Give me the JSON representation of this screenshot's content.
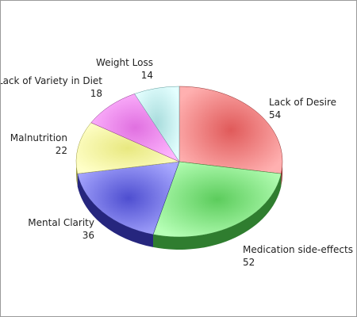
{
  "chart_data": {
    "type": "pie",
    "title": "",
    "three_d": true,
    "legend": "none",
    "slices": [
      {
        "label": "Lack of Desire",
        "value": 54,
        "color": "#e05a5a",
        "light": "#ffb0b0",
        "dark": "#8e2a2a"
      },
      {
        "label": "Medication side-effects",
        "value": 52,
        "color": "#5ccc5c",
        "light": "#b6ffb6",
        "dark": "#2f7d2f"
      },
      {
        "label": "Mental Clarity",
        "value": 36,
        "color": "#4e4ed0",
        "light": "#a8a8ff",
        "dark": "#26267e"
      },
      {
        "label": "Malnutrition",
        "value": 22,
        "color": "#e8e880",
        "light": "#ffffc8",
        "dark": "#9a9a40"
      },
      {
        "label": "Lack of Variety in Diet",
        "value": 18,
        "color": "#e070e0",
        "light": "#ffb8ff",
        "dark": "#8a348a"
      },
      {
        "label": "Weight Loss",
        "value": 14,
        "color": "#a8dcdc",
        "light": "#e4ffff",
        "dark": "#5e9a9a"
      }
    ]
  }
}
